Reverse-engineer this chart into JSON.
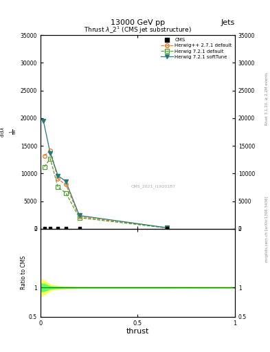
{
  "title_top": "13000 GeV pp",
  "title_right": "Jets",
  "plot_title": "Thrust $\\lambda$_2$^1$ (CMS jet substructure)",
  "xlabel": "thrust",
  "right_label": "Rivet 3.1.10, ≥ 2.2M events",
  "watermark": "mcplots.cern.ch [arXiv:1306.3436]",
  "cms_label": "CMS_2021_I1920187",
  "ratio_ylabel": "Ratio to CMS",
  "xlim": [
    0,
    1
  ],
  "ylim_main": [
    0,
    35000
  ],
  "ylim_ratio": [
    0.5,
    2.0
  ],
  "color_cms": "#000000",
  "color_herwigpp": "#e07828",
  "color_herwig721d": "#50a030",
  "color_herwig721s": "#287878",
  "color_ratio_yellow": "#ffff60",
  "color_ratio_green": "#60ff60",
  "color_ratio_line": "#008000",
  "bg_color": "#ffffff",
  "herwig_pp_x": [
    0.02,
    0.05,
    0.09,
    0.13,
    0.2,
    0.65
  ],
  "herwig_pp_y": [
    13200,
    14200,
    9000,
    8000,
    2200,
    180
  ],
  "herwig_721d_x": [
    0.02,
    0.05,
    0.09,
    0.13,
    0.2,
    0.65
  ],
  "herwig_721d_y": [
    11200,
    12700,
    7500,
    6500,
    2000,
    150
  ],
  "herwig_721s_x": [
    0.015,
    0.05,
    0.09,
    0.13,
    0.2,
    0.65
  ],
  "herwig_721s_y": [
    19500,
    13700,
    9600,
    8600,
    2400,
    200
  ],
  "cms_data_x": [
    0.02,
    0.05,
    0.09,
    0.13,
    0.2,
    0.65
  ],
  "cms_data_y": [
    50,
    50,
    50,
    50,
    50,
    50
  ],
  "ratio_x": [
    0.0,
    0.02,
    0.05,
    0.1,
    0.2,
    0.4,
    0.65,
    1.0
  ],
  "yellow_upper": [
    1.15,
    1.12,
    1.05,
    1.02,
    1.01,
    1.01,
    1.01,
    1.005
  ],
  "yellow_lower": [
    0.85,
    0.88,
    0.95,
    0.98,
    0.99,
    0.99,
    0.99,
    0.995
  ],
  "green_upper": [
    1.07,
    1.06,
    1.02,
    1.01,
    1.005,
    1.005,
    1.005,
    1.002
  ],
  "green_lower": [
    0.93,
    0.94,
    0.98,
    0.99,
    0.995,
    0.995,
    0.995,
    0.998
  ]
}
